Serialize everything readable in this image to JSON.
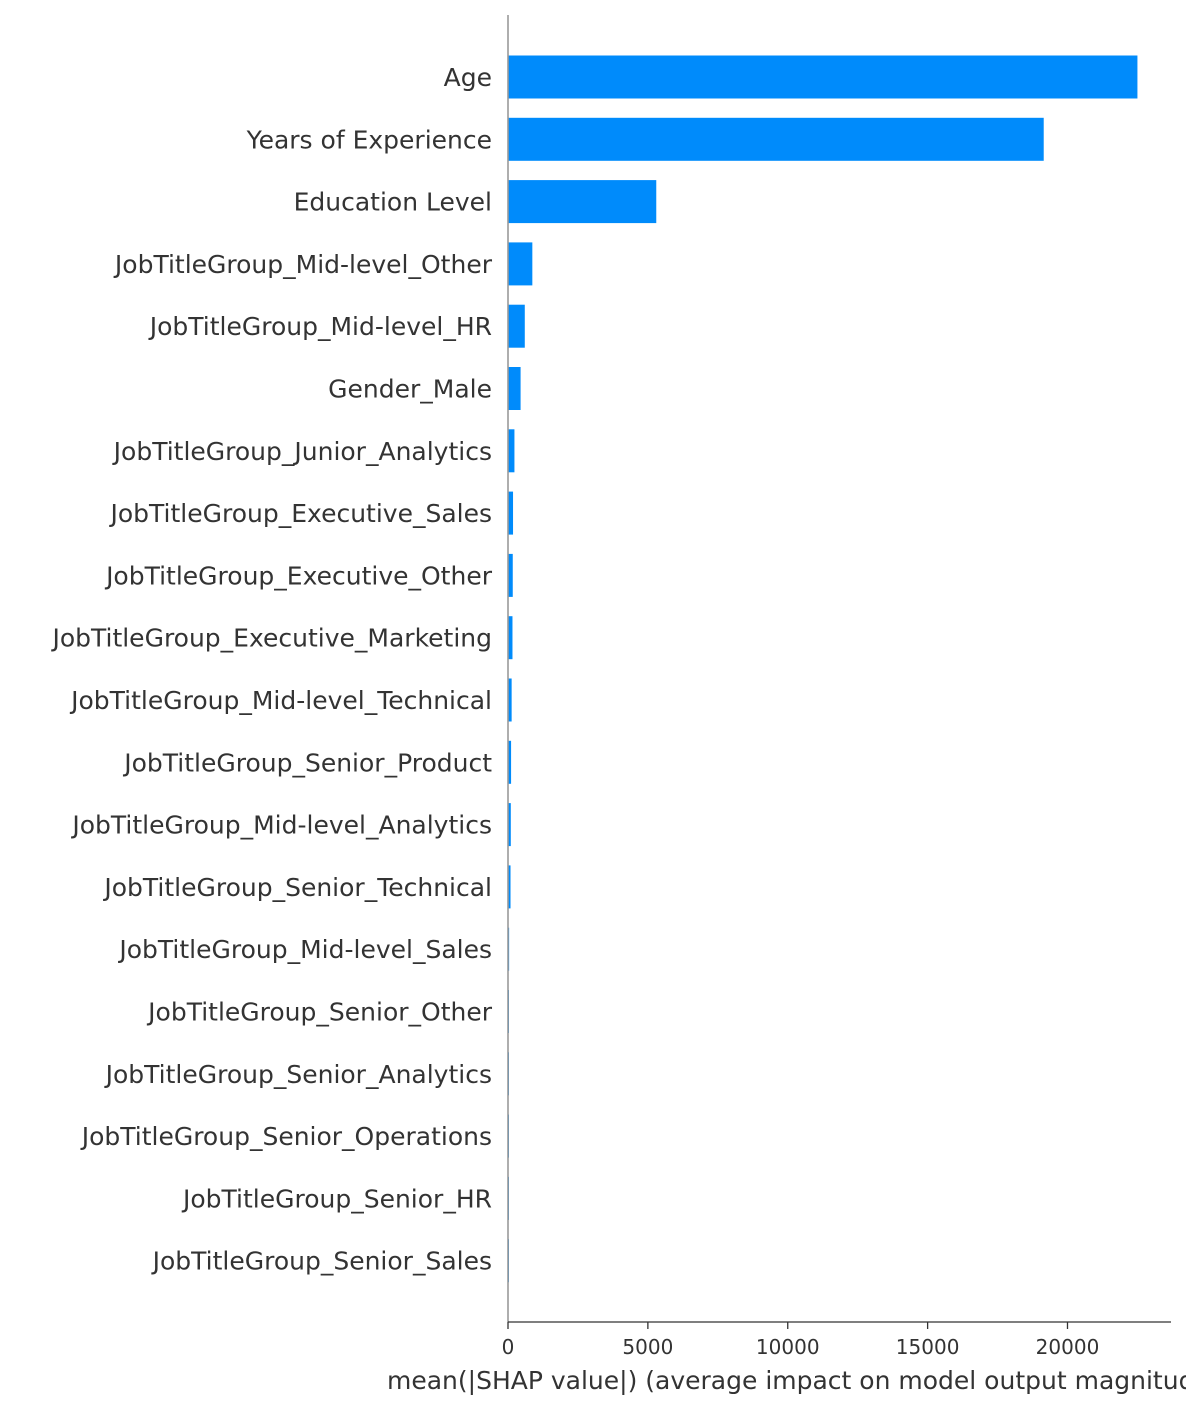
{
  "chart_data": {
    "type": "bar",
    "orientation": "horizontal",
    "categories": [
      "Age",
      "Years of Experience",
      "Education Level",
      "JobTitleGroup_Mid-level_Other",
      "JobTitleGroup_Mid-level_HR",
      "Gender_Male",
      "JobTitleGroup_Junior_Analytics",
      "JobTitleGroup_Executive_Sales",
      "JobTitleGroup_Executive_Other",
      "JobTitleGroup_Executive_Marketing",
      "JobTitleGroup_Mid-level_Technical",
      "JobTitleGroup_Senior_Product",
      "JobTitleGroup_Mid-level_Analytics",
      "JobTitleGroup_Senior_Technical",
      "JobTitleGroup_Mid-level_Sales",
      "JobTitleGroup_Senior_Other",
      "JobTitleGroup_Senior_Analytics",
      "JobTitleGroup_Senior_Operations",
      "JobTitleGroup_Senior_HR",
      "JobTitleGroup_Senior_Sales"
    ],
    "values": [
      22500,
      19150,
      5300,
      870,
      600,
      450,
      230,
      180,
      170,
      160,
      130,
      110,
      100,
      90,
      40,
      35,
      30,
      25,
      20,
      15
    ],
    "title": "",
    "xlabel": "mean(|SHAP value|) (average impact on model output magnitude)",
    "ylabel": "",
    "xlim": [
      0,
      23700
    ],
    "xticks": [
      0,
      5000,
      10000,
      15000,
      20000
    ],
    "grid": false,
    "legend": "none",
    "bar_color": "#008bfb",
    "axis_color": "#999999",
    "text_color": "#333333"
  }
}
